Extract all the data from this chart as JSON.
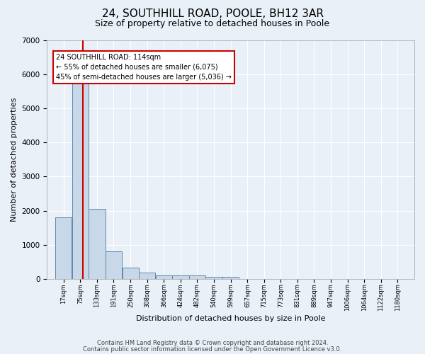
{
  "title1": "24, SOUTHHILL ROAD, POOLE, BH12 3AR",
  "title2": "Size of property relative to detached houses in Poole",
  "xlabel": "Distribution of detached houses by size in Poole",
  "ylabel": "Number of detached properties",
  "bar_edges": [
    17,
    75,
    133,
    191,
    250,
    308,
    366,
    424,
    482,
    540,
    599,
    657,
    715,
    773,
    831,
    889,
    947,
    1006,
    1064,
    1122,
    1180
  ],
  "bar_heights": [
    1800,
    5800,
    2050,
    820,
    340,
    190,
    115,
    110,
    105,
    75,
    70,
    0,
    0,
    0,
    0,
    0,
    0,
    0,
    0,
    0,
    0
  ],
  "bar_color": "#c8d8e8",
  "bar_edgecolor": "#5a8ab0",
  "vline_x": 114,
  "vline_color": "#cc0000",
  "annotation_text": "24 SOUTHHILL ROAD: 114sqm\n← 55% of detached houses are smaller (6,075)\n45% of semi-detached houses are larger (5,036) →",
  "annotation_box_edgecolor": "#cc0000",
  "annotation_box_facecolor": "#ffffff",
  "ylim": [
    0,
    7000
  ],
  "yticks": [
    0,
    1000,
    2000,
    3000,
    4000,
    5000,
    6000,
    7000
  ],
  "footer1": "Contains HM Land Registry data © Crown copyright and database right 2024.",
  "footer2": "Contains public sector information licensed under the Open Government Licence v3.0.",
  "bg_color": "#eaf0f8",
  "plot_bg_color": "#eaf0f8",
  "grid_color": "#ffffff",
  "title1_fontsize": 11,
  "title2_fontsize": 9,
  "footer_fontsize": 6,
  "ylabel_fontsize": 8,
  "xlabel_fontsize": 8,
  "annot_fontsize": 7,
  "ytick_fontsize": 7.5,
  "xtick_fontsize": 6
}
